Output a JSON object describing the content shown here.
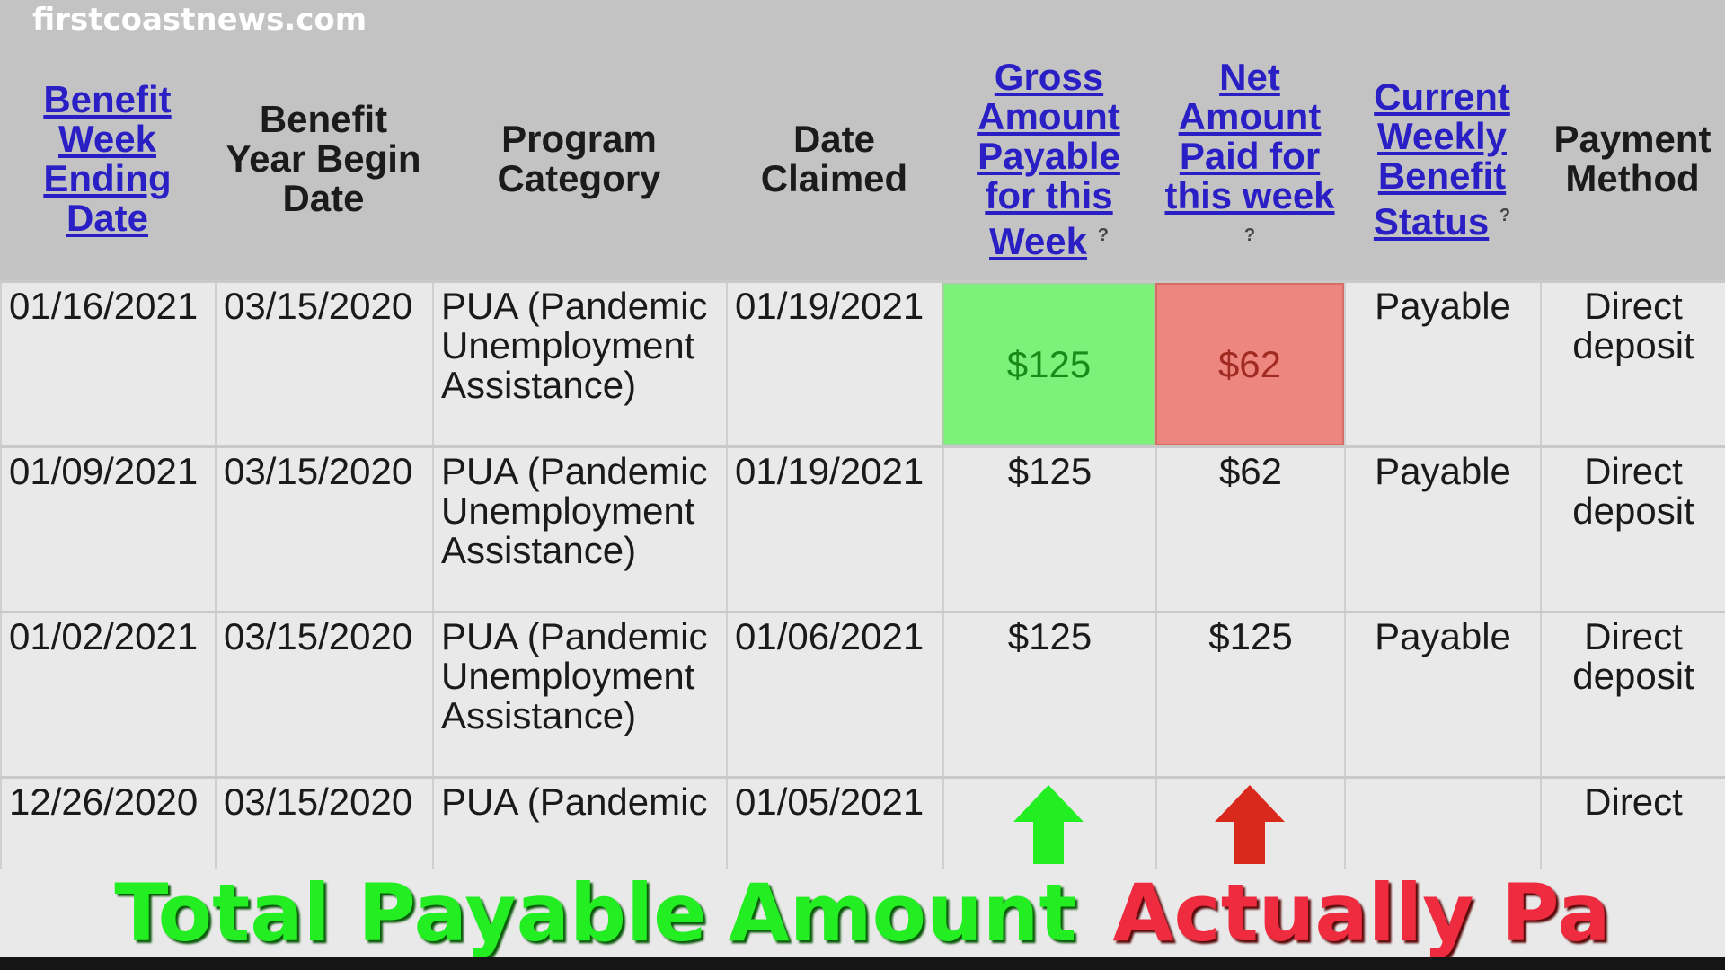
{
  "watermark": "firstcoastnews.com",
  "headers": [
    {
      "label": "Benefit Week Ending Date",
      "link": true
    },
    {
      "label": "Benefit Year Begin Date",
      "link": false
    },
    {
      "label": "Program Category",
      "link": false
    },
    {
      "label": "Date Claimed",
      "link": false
    },
    {
      "label": "Gross Amount Payable for this Week",
      "link": true,
      "help": "?"
    },
    {
      "label": "Net Amount Paid for this week",
      "link": true,
      "help": "?"
    },
    {
      "label": "Current Weekly Benefit Status",
      "link": true,
      "help": "?"
    },
    {
      "label": "Payment Method",
      "link": false
    }
  ],
  "rows": [
    {
      "week": "01/16/2021",
      "year_begin": "03/15/2020",
      "program": "PUA (Pandemic Unemployment Assistance)",
      "claimed": "01/19/2021",
      "gross": "$125",
      "net": "$62",
      "status": "Payable",
      "method": "Direct deposit"
    },
    {
      "week": "01/09/2021",
      "year_begin": "03/15/2020",
      "program": "PUA (Pandemic Unemployment Assistance)",
      "claimed": "01/19/2021",
      "gross": "$125",
      "net": "$62",
      "status": "Payable",
      "method": "Direct deposit"
    },
    {
      "week": "01/02/2021",
      "year_begin": "03/15/2020",
      "program": "PUA (Pandemic Unemployment Assistance)",
      "claimed": "01/06/2021",
      "gross": "$125",
      "net": "$125",
      "status": "Payable",
      "method": "Direct deposit"
    },
    {
      "week": "12/26/2020",
      "year_begin": "03/15/2020",
      "program": "PUA (Pandemic",
      "claimed": "01/05/2021",
      "gross": "",
      "net": "",
      "status": "",
      "method": "Direct"
    }
  ],
  "overlay": {
    "green_line1": "Total Payable",
    "green_line2": "Amount",
    "red": "Actually Pa"
  },
  "colors": {
    "highlight_green": "#7df27a",
    "highlight_red": "#ee8680",
    "link": "#2a1fc4",
    "overlay_green": "#22ee22",
    "overlay_red": "#ee2b3f"
  }
}
